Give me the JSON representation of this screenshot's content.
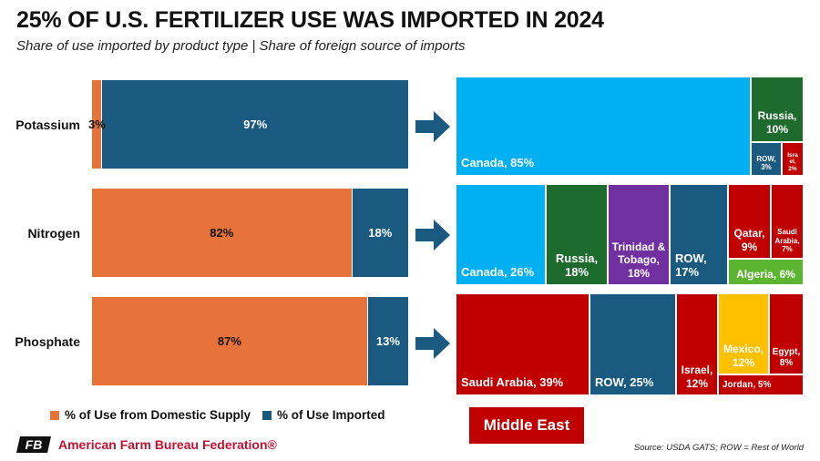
{
  "header": {
    "title": "25% OF U.S. FERTILIZER USE WAS IMPORTED IN 2024",
    "subtitle": "Share of use imported by product type  |  Share of foreign source of imports"
  },
  "colors": {
    "domestic": "#e8733a",
    "imported": "#1a5a80",
    "canada": "#00b0f0",
    "russia": "#1e6b2e",
    "trinidad": "#7030a0",
    "row": "#1a5a80",
    "middle_east": "#c00000",
    "algeria": "#5cb531",
    "mexico": "#ffc000"
  },
  "chart_data": [
    {
      "type": "bar",
      "orientation": "horizontal",
      "stacked": true,
      "title": "Share of use imported by product type",
      "categories": [
        "Potassium",
        "Nitrogen",
        "Phosphate"
      ],
      "series": [
        {
          "name": "% of Use from Domestic Supply",
          "values": [
            3,
            82,
            87
          ],
          "labels": [
            "3%",
            "82%",
            "87%"
          ]
        },
        {
          "name": "% of Use Imported",
          "values": [
            97,
            18,
            13
          ],
          "labels": [
            "97%",
            "18%",
            "13%"
          ]
        }
      ],
      "xlim": [
        0,
        100
      ],
      "legend": [
        {
          "label": "% of Use from Domestic Supply",
          "color": "#e8733a"
        },
        {
          "label": "% of Use Imported",
          "color": "#1a5a80"
        }
      ]
    },
    {
      "type": "treemap",
      "title": "Share of foreign source of imports",
      "groups": [
        {
          "product": "Potassium",
          "items": [
            {
              "label": "Canada, 85%",
              "value": 85,
              "color": "#00b0f0"
            },
            {
              "label": "Russia, 10%",
              "value": 10,
              "color": "#1e6b2e"
            },
            {
              "label": "ROW, 3%",
              "value": 3,
              "color": "#1a5a80"
            },
            {
              "label": "Israel, 2%",
              "value": 2,
              "color": "#c00000"
            }
          ]
        },
        {
          "product": "Nitrogen",
          "items": [
            {
              "label": "Canada, 26%",
              "value": 26,
              "color": "#00b0f0"
            },
            {
              "label": "Russia, 18%",
              "value": 18,
              "color": "#1e6b2e"
            },
            {
              "label": "Trinidad & Tobago, 18%",
              "value": 18,
              "color": "#7030a0"
            },
            {
              "label": "ROW, 17%",
              "value": 17,
              "color": "#1a5a80"
            },
            {
              "label": "Qatar, 9%",
              "value": 9,
              "color": "#c00000"
            },
            {
              "label": "Saudi Arabia, 7%",
              "value": 7,
              "color": "#c00000"
            },
            {
              "label": "Algeria, 6%",
              "value": 6,
              "color": "#5cb531"
            }
          ]
        },
        {
          "product": "Phosphate",
          "items": [
            {
              "label": "Saudi Arabia, 39%",
              "value": 39,
              "color": "#c00000"
            },
            {
              "label": "ROW, 25%",
              "value": 25,
              "color": "#1a5a80"
            },
            {
              "label": "Israel, 12%",
              "value": 12,
              "color": "#c00000"
            },
            {
              "label": "Mexico, 12%",
              "value": 12,
              "color": "#ffc000"
            },
            {
              "label": "Egypt, 8%",
              "value": 8,
              "color": "#c00000"
            },
            {
              "label": "Jordan, 5%",
              "value": 5,
              "color": "#c00000"
            }
          ]
        }
      ],
      "legend": [
        {
          "label": "Middle East",
          "color": "#c00000"
        }
      ]
    }
  ],
  "tiles": {
    "pot_canada": "Canada, 85%",
    "pot_russia": [
      "Russia,",
      "10%"
    ],
    "pot_row": [
      "ROW,",
      "3%"
    ],
    "pot_israel": [
      "Isra",
      "el,",
      "2%"
    ],
    "nit_canada": "Canada, 26%",
    "nit_russia": [
      "Russia,",
      "18%"
    ],
    "nit_trinidad": [
      "Trinidad &",
      "Tobago,",
      "18%"
    ],
    "nit_row": [
      "ROW,",
      "17%"
    ],
    "nit_qatar": [
      "Qatar,",
      "9%"
    ],
    "nit_saudi": [
      "Saudi",
      "Arabia,",
      "7%"
    ],
    "nit_algeria": "Algeria, 6%",
    "pho_saudi": "Saudi Arabia, 39%",
    "pho_row": "ROW, 25%",
    "pho_israel": [
      "Israel,",
      "12%"
    ],
    "pho_mexico": [
      "Mexico,",
      "12%"
    ],
    "pho_egypt": [
      "Egypt,",
      "8%"
    ],
    "pho_jordan": "Jordan, 5%"
  },
  "footer": {
    "middle_east_label": "Middle East",
    "brand": "American Farm Bureau Federation®",
    "logo_letters": "FB",
    "source": "Source: USDA GATS; ROW = Rest of World"
  }
}
